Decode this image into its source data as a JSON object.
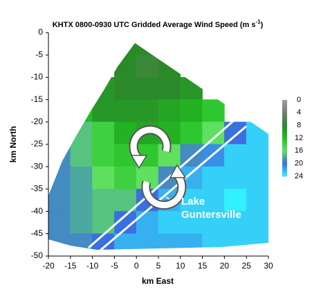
{
  "chart_data": {
    "type": "heatmap",
    "title": "KHTX 0800-0930 UTC Gridded Average Wind Speed (m s",
    "title_superscript": "-1",
    "title_end": ")",
    "xlabel": "km East",
    "ylabel": "km North",
    "xlim": [
      -20,
      30
    ],
    "ylim": [
      -50,
      0
    ],
    "xticks": [
      -20,
      -15,
      -10,
      -5,
      0,
      5,
      10,
      15,
      20,
      25,
      30
    ],
    "yticks": [
      0,
      -5,
      -10,
      -15,
      -20,
      -25,
      -30,
      -35,
      -40,
      -45,
      -50
    ],
    "x": [
      -17.5,
      -12.5,
      -7.5,
      -2.5,
      2.5,
      7.5,
      12.5,
      17.5,
      22.5,
      27.5
    ],
    "y": [
      -2.5,
      -7.5,
      -12.5,
      -17.5,
      -22.5,
      -27.5,
      -32.5,
      -37.5,
      -42.5,
      -47.5
    ],
    "z": [
      [
        null,
        null,
        null,
        8,
        8,
        null,
        null,
        null,
        null,
        null
      ],
      [
        null,
        null,
        null,
        8,
        7,
        8,
        null,
        null,
        null,
        null
      ],
      [
        null,
        null,
        9,
        8,
        8,
        8,
        9,
        null,
        null,
        null
      ],
      [
        null,
        12,
        9,
        9,
        9,
        10,
        11,
        13,
        null,
        null
      ],
      [
        null,
        17,
        14,
        11,
        10,
        11,
        13,
        16,
        20,
        23
      ],
      [
        19,
        17,
        14,
        13,
        13,
        16,
        19,
        21,
        23,
        23
      ],
      [
        19,
        18,
        16,
        14,
        16,
        19,
        22,
        23,
        23,
        23
      ],
      [
        19,
        18,
        17,
        17,
        20,
        22,
        23,
        23,
        24,
        23
      ],
      [
        19,
        18,
        17,
        20,
        22,
        23,
        23,
        23,
        23,
        23
      ],
      [
        19,
        19,
        20,
        22,
        22,
        22,
        22,
        23,
        23,
        23
      ]
    ],
    "colorbar": {
      "ticks": [
        0,
        4,
        8,
        12,
        16,
        20,
        24
      ],
      "colors": [
        "#a0a0a0",
        "#6f806f",
        "#2a8a2a",
        "#1fbf1f",
        "#5fe05f",
        "#3a6fe0",
        "#33f0ff"
      ]
    },
    "annotation": [
      "Lake",
      "Guntersville"
    ]
  }
}
